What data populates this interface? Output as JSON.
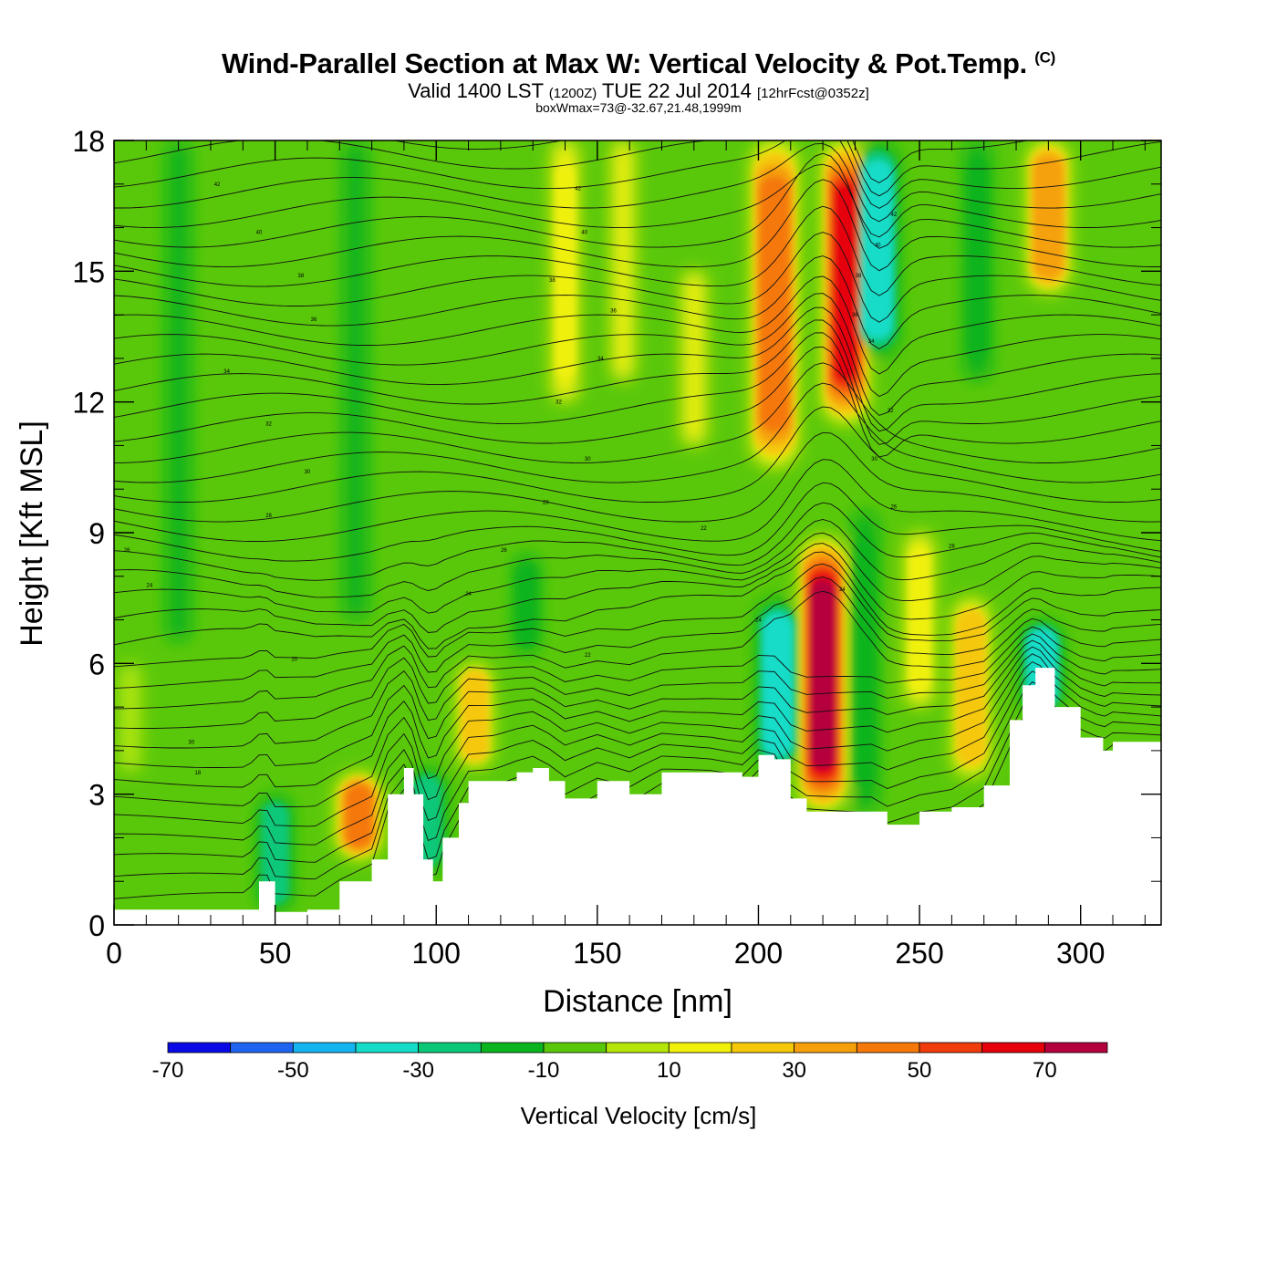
{
  "title": {
    "main": "Wind-Parallel Section at Max W: Vertical Velocity & Pot.Temp.",
    "copyright": "(C)",
    "valid_prefix": "Valid 1400 LST",
    "valid_utc": "(1200Z)",
    "valid_date": "TUE 22 Jul 2014",
    "forecast": "[12hrFcst@0352z]",
    "box_info": "boxWmax=73@-32.67,21.48,1999m"
  },
  "chart_data": {
    "type": "heatmap",
    "xlabel": "Distance [nm]",
    "ylabel": "Height [Kft MSL]",
    "xlim": [
      0,
      325
    ],
    "ylim": [
      0,
      18
    ],
    "x_ticks": [
      0,
      50,
      100,
      150,
      200,
      250,
      300
    ],
    "y_ticks": [
      0,
      3,
      6,
      9,
      12,
      15,
      18
    ],
    "colorbar": {
      "title": "Vertical Velocity [cm/s]",
      "boundaries": [
        -70,
        -60,
        -50,
        -40,
        -30,
        -20,
        -10,
        0,
        10,
        20,
        30,
        40,
        50,
        60,
        70,
        80
      ],
      "labels": [
        "-70",
        "-50",
        "-30",
        "-10",
        "10",
        "30",
        "50",
        "70"
      ],
      "label_values": [
        -70,
        -50,
        -30,
        -10,
        10,
        30,
        50,
        70
      ],
      "colors": [
        "#0a0ae6",
        "#1e64f0",
        "#14b4f0",
        "#14dcc8",
        "#0ac878",
        "#0ab41e",
        "#5ac80a",
        "#b4e60a",
        "#f0f00a",
        "#f5c80a",
        "#f5a00a",
        "#f5780a",
        "#f03c0a",
        "#e6000a",
        "#b4003c"
      ]
    },
    "terrain": [
      [
        0,
        0.35
      ],
      [
        40,
        0.35
      ],
      [
        45,
        1.0
      ],
      [
        48,
        1.0
      ],
      [
        50,
        0.3
      ],
      [
        60,
        0.35
      ],
      [
        70,
        1.0
      ],
      [
        80,
        1.5
      ],
      [
        85,
        3.0
      ],
      [
        90,
        3.6
      ],
      [
        93,
        3.0
      ],
      [
        96,
        1.5
      ],
      [
        99,
        1.0
      ],
      [
        102,
        2.0
      ],
      [
        107,
        2.8
      ],
      [
        110,
        3.3
      ],
      [
        118,
        3.3
      ],
      [
        125,
        3.5
      ],
      [
        130,
        3.6
      ],
      [
        135,
        3.3
      ],
      [
        140,
        2.9
      ],
      [
        150,
        3.3
      ],
      [
        160,
        3.0
      ],
      [
        170,
        3.5
      ],
      [
        185,
        3.5
      ],
      [
        195,
        3.4
      ],
      [
        200,
        3.9
      ],
      [
        205,
        3.8
      ],
      [
        210,
        2.9
      ],
      [
        215,
        2.6
      ],
      [
        235,
        2.6
      ],
      [
        240,
        2.3
      ],
      [
        250,
        2.6
      ],
      [
        260,
        2.7
      ],
      [
        270,
        3.2
      ],
      [
        278,
        4.7
      ],
      [
        282,
        5.5
      ],
      [
        286,
        5.9
      ],
      [
        292,
        5.0
      ],
      [
        300,
        4.3
      ],
      [
        307,
        4.0
      ],
      [
        310,
        4.2
      ],
      [
        325,
        4.2
      ]
    ],
    "velocity_features": [
      {
        "x": 220,
        "y0": 2.6,
        "y1": 8.9,
        "value": 73
      },
      {
        "x": 227,
        "y0": 11.5,
        "y1": 18,
        "value": 60
      },
      {
        "x": 205,
        "y0": 10.5,
        "y1": 18,
        "value": 45
      },
      {
        "x": 233,
        "y0": 2.6,
        "y1": 9.5,
        "value": -15
      },
      {
        "x": 237,
        "y0": 13,
        "y1": 18,
        "value": -35
      },
      {
        "x": 206,
        "y0": 3.5,
        "y1": 7.5,
        "value": -35
      },
      {
        "x": 288,
        "y0": 4.8,
        "y1": 7,
        "value": -35
      },
      {
        "x": 140,
        "y0": 12,
        "y1": 18,
        "value": 15
      },
      {
        "x": 158,
        "y0": 12.5,
        "y1": 18,
        "value": 10
      },
      {
        "x": 250,
        "y0": 5,
        "y1": 9,
        "value": 18
      },
      {
        "x": 266,
        "y0": 3.4,
        "y1": 7.5,
        "value": 28
      },
      {
        "x": 290,
        "y0": 14.5,
        "y1": 18,
        "value": 35
      },
      {
        "x": 112,
        "y0": 3.6,
        "y1": 6,
        "value": 25
      },
      {
        "x": 76,
        "y0": 1.5,
        "y1": 3.5,
        "value": 40
      },
      {
        "x": 97,
        "y0": 1.2,
        "y1": 3.6,
        "value": -30
      },
      {
        "x": 50,
        "y0": 0.3,
        "y1": 3.0,
        "value": -25
      },
      {
        "x": 128,
        "y0": 6.2,
        "y1": 8.5,
        "value": -15
      },
      {
        "x": 268,
        "y0": 12.5,
        "y1": 18,
        "value": -15
      },
      {
        "x": 75,
        "y0": 7,
        "y1": 18,
        "value": -12
      },
      {
        "x": 20,
        "y0": 6.5,
        "y1": 18,
        "value": -12
      },
      {
        "x": 180,
        "y0": 11,
        "y1": 15,
        "value": 12
      },
      {
        "x": 5,
        "y0": 3.5,
        "y1": 6,
        "value": 8
      }
    ],
    "contour_labels": [
      {
        "x": 32,
        "y": 17.0,
        "text": "42"
      },
      {
        "x": 45,
        "y": 15.9,
        "text": "40"
      },
      {
        "x": 58,
        "y": 14.9,
        "text": "38"
      },
      {
        "x": 62,
        "y": 13.9,
        "text": "36"
      },
      {
        "x": 35,
        "y": 12.7,
        "text": "34"
      },
      {
        "x": 48,
        "y": 11.5,
        "text": "32"
      },
      {
        "x": 60,
        "y": 10.4,
        "text": "30"
      },
      {
        "x": 48,
        "y": 9.4,
        "text": "28"
      },
      {
        "x": 4,
        "y": 8.6,
        "text": "26"
      },
      {
        "x": 11,
        "y": 7.8,
        "text": "24"
      },
      {
        "x": 56,
        "y": 6.1,
        "text": "20"
      },
      {
        "x": 24,
        "y": 4.2,
        "text": "30"
      },
      {
        "x": 26,
        "y": 3.5,
        "text": "18"
      },
      {
        "x": 144,
        "y": 16.9,
        "text": "42"
      },
      {
        "x": 146,
        "y": 15.9,
        "text": "40"
      },
      {
        "x": 136,
        "y": 14.8,
        "text": "38"
      },
      {
        "x": 155,
        "y": 14.1,
        "text": "36"
      },
      {
        "x": 151,
        "y": 13.0,
        "text": "34"
      },
      {
        "x": 138,
        "y": 12.0,
        "text": "32"
      },
      {
        "x": 147,
        "y": 10.7,
        "text": "30"
      },
      {
        "x": 134,
        "y": 9.7,
        "text": "28"
      },
      {
        "x": 121,
        "y": 8.6,
        "text": "26"
      },
      {
        "x": 110,
        "y": 7.6,
        "text": "24"
      },
      {
        "x": 147,
        "y": 6.2,
        "text": "22"
      },
      {
        "x": 183,
        "y": 9.1,
        "text": "22"
      },
      {
        "x": 200,
        "y": 7.0,
        "text": "24"
      },
      {
        "x": 226,
        "y": 7.7,
        "text": "24"
      },
      {
        "x": 242,
        "y": 9.6,
        "text": "26"
      },
      {
        "x": 260,
        "y": 8.7,
        "text": "28"
      },
      {
        "x": 236,
        "y": 10.7,
        "text": "30"
      },
      {
        "x": 241,
        "y": 11.8,
        "text": "32"
      },
      {
        "x": 235,
        "y": 13.4,
        "text": "34"
      },
      {
        "x": 230,
        "y": 14.0,
        "text": "36"
      },
      {
        "x": 231,
        "y": 14.9,
        "text": "38"
      },
      {
        "x": 237,
        "y": 15.6,
        "text": "40"
      },
      {
        "x": 242,
        "y": 16.3,
        "text": "42"
      }
    ]
  }
}
